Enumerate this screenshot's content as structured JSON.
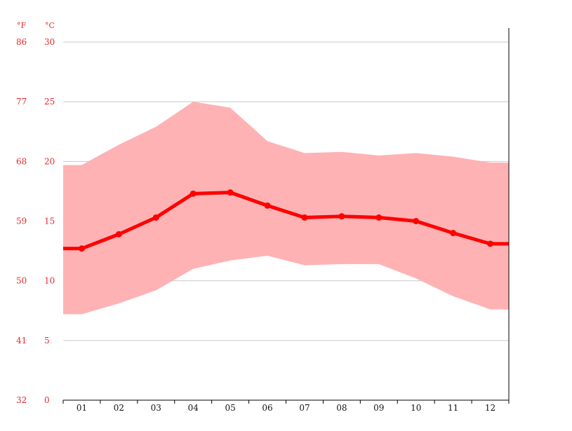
{
  "chart_data": {
    "type": "area",
    "categories": [
      "01",
      "02",
      "03",
      "04",
      "05",
      "06",
      "07",
      "08",
      "09",
      "10",
      "11",
      "12"
    ],
    "unit_labels": {
      "fahrenheit": "°F",
      "celsius": "°C"
    },
    "y_ticks_celsius": [
      "0",
      "5",
      "10",
      "15",
      "20",
      "25",
      "30"
    ],
    "y_ticks_fahrenheit": [
      "32",
      "41",
      "50",
      "59",
      "68",
      "77",
      "86"
    ],
    "ylim": [
      0,
      30
    ],
    "series": [
      {
        "values": [
          12.7,
          13.9,
          15.3,
          17.3,
          17.4,
          16.3,
          15.3,
          15.4,
          15.3,
          15.0,
          14.0,
          13.1
        ]
      },
      {
        "values": [
          19.7,
          21.4,
          22.9,
          25.0,
          24.5,
          21.7,
          20.7,
          20.8,
          20.5,
          20.7,
          20.4,
          19.9
        ]
      },
      {
        "values": [
          7.2,
          8.1,
          9.2,
          11.0,
          11.7,
          12.1,
          11.3,
          11.4,
          11.4,
          10.2,
          8.7,
          7.6
        ]
      }
    ],
    "colors": {
      "mean_line": "#ff0000",
      "range_band": "#ffb2b4",
      "tick_text": "#e8282b",
      "grid": "#c8c8c8",
      "axis": "#000000"
    },
    "grid": true,
    "legend": "none"
  }
}
